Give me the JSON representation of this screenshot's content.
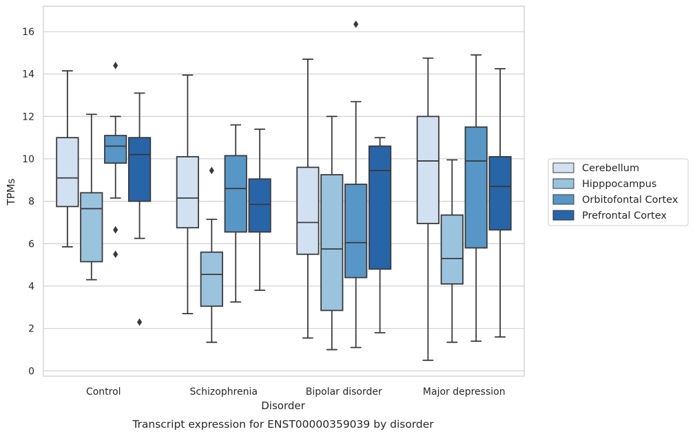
{
  "chart_data": {
    "type": "box",
    "title": "",
    "caption": "Transcript expression for ENST00000359039 by disorder",
    "xlabel": "Disorder",
    "ylabel": "TPMs",
    "ylim": [
      -0.25,
      17.2
    ],
    "yticks": [
      "0",
      "2",
      "4",
      "6",
      "8",
      "10",
      "12",
      "14",
      "16"
    ],
    "grid": "horizontal",
    "legend_position": "right",
    "categories": [
      "Control",
      "Schizophrenia",
      "Bipolar disorder",
      "Major depression"
    ],
    "series": [
      {
        "name": "Cerebellum",
        "color": "#d1e1f1",
        "boxes": [
          {
            "min": 5.85,
            "q1": 7.75,
            "median": 9.1,
            "q3": 11.0,
            "max": 14.15,
            "outliers": []
          },
          {
            "min": 2.7,
            "q1": 6.75,
            "median": 8.15,
            "q3": 10.1,
            "max": 13.95,
            "outliers": []
          },
          {
            "min": 1.55,
            "q1": 5.5,
            "median": 7.0,
            "q3": 9.6,
            "max": 14.7,
            "outliers": []
          },
          {
            "min": 0.5,
            "q1": 6.95,
            "median": 9.9,
            "q3": 12.0,
            "max": 14.75,
            "outliers": []
          }
        ]
      },
      {
        "name": "Hipppocampus",
        "color": "#9ac3de",
        "boxes": [
          {
            "min": 4.3,
            "q1": 5.15,
            "median": 7.65,
            "q3": 8.4,
            "max": 12.1,
            "outliers": []
          },
          {
            "min": 1.35,
            "q1": 3.05,
            "median": 4.55,
            "q3": 5.6,
            "max": 7.15,
            "outliers": [
              9.45
            ]
          },
          {
            "min": 1.0,
            "q1": 2.85,
            "median": 5.75,
            "q3": 9.25,
            "max": 12.0,
            "outliers": []
          },
          {
            "min": 1.35,
            "q1": 4.1,
            "median": 5.3,
            "q3": 7.35,
            "max": 9.95,
            "outliers": []
          }
        ]
      },
      {
        "name": "Orbitofontal Cortex",
        "color": "#5796c6",
        "boxes": [
          {
            "min": 8.15,
            "q1": 9.8,
            "median": 10.6,
            "q3": 11.1,
            "max": 12.0,
            "outliers": [
              14.4,
              6.65,
              5.5
            ]
          },
          {
            "min": 3.25,
            "q1": 6.55,
            "median": 8.6,
            "q3": 10.15,
            "max": 11.6,
            "outliers": []
          },
          {
            "min": 1.1,
            "q1": 4.4,
            "median": 6.05,
            "q3": 8.8,
            "max": 12.7,
            "outliers": [
              16.35
            ]
          },
          {
            "min": 1.4,
            "q1": 5.8,
            "median": 9.9,
            "q3": 11.5,
            "max": 14.9,
            "outliers": []
          }
        ]
      },
      {
        "name": "Prefrontal Cortex",
        "color": "#2765a8",
        "boxes": [
          {
            "min": 6.25,
            "q1": 8.0,
            "median": 10.2,
            "q3": 11.0,
            "max": 13.1,
            "outliers": [
              2.3
            ]
          },
          {
            "min": 3.8,
            "q1": 6.55,
            "median": 7.85,
            "q3": 9.05,
            "max": 11.4,
            "outliers": []
          },
          {
            "min": 1.8,
            "q1": 4.8,
            "median": 9.45,
            "q3": 10.6,
            "max": 11.0,
            "outliers": []
          },
          {
            "min": 1.6,
            "q1": 6.65,
            "median": 8.7,
            "q3": 10.1,
            "max": 14.25,
            "outliers": []
          }
        ]
      }
    ]
  }
}
